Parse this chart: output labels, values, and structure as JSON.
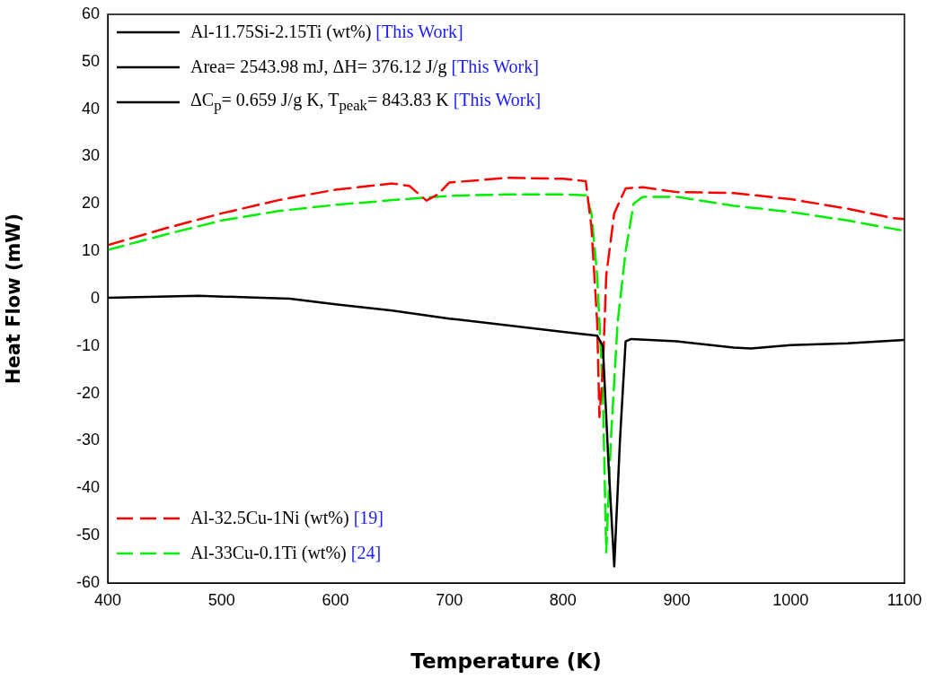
{
  "chart_data": {
    "type": "line",
    "xlabel": "Temperature (K)",
    "ylabel": "Heat Flow (mW)",
    "xlim": [
      400,
      1100
    ],
    "xticks": [
      400,
      500,
      600,
      700,
      800,
      900,
      1000,
      1100
    ],
    "ylim": [
      -60,
      60
    ],
    "yticks": [
      -60,
      -50,
      -40,
      -30,
      -20,
      -10,
      0,
      10,
      20,
      30,
      40,
      50,
      60
    ],
    "grid": false,
    "legend": "top left",
    "marker": "none",
    "annotations": [
      "Area= 2543.98 mJ, ΔH= 376.12 J/g [This Work]",
      "ΔC$_{p}$= 0.659 J/g K, T$_{peak}$= 843.83 K [This Work]"
    ],
    "series": [
      {
        "name": "Al-11.75Si-2.15Ti (wt%) [This Work]",
        "color": "#000000",
        "line_style": "solid",
        "x": [
          400,
          480,
          560,
          600,
          650,
          700,
          750,
          800,
          830,
          835,
          840,
          845,
          850,
          855,
          860,
          900,
          950,
          965,
          1000,
          1050,
          1100
        ],
        "values": [
          0.2,
          0.6,
          0,
          -1.2,
          -2.5,
          -4.2,
          -5.6,
          -7,
          -7.8,
          -10,
          -35,
          -56.5,
          -30,
          -9,
          -8.5,
          -9,
          -10.3,
          -10.5,
          -9.8,
          -9.4,
          -8.7
        ]
      },
      {
        "name": "Al-32.5Cu-1Ni (wt%) [19]",
        "color": "#ff0000",
        "line_style": "dashed",
        "x": [
          400,
          450,
          500,
          550,
          600,
          650,
          665,
          680,
          690,
          700,
          750,
          800,
          820,
          825,
          830,
          832,
          835,
          838,
          845,
          855,
          870,
          900,
          950,
          1000,
          1050,
          1090,
          1100
        ],
        "values": [
          11.3,
          14.8,
          18,
          20.8,
          23,
          24.3,
          23.8,
          20.7,
          22,
          24.5,
          25.5,
          25.3,
          24.8,
          15,
          -5,
          -25,
          -15,
          5,
          18,
          23.3,
          23.5,
          22.5,
          22.3,
          21,
          19,
          17,
          16.8
        ]
      },
      {
        "name": "Al-33Cu-0.1Ti (wt%) [24]",
        "color": "#00ee00",
        "line_style": "dashed",
        "x": [
          400,
          450,
          500,
          550,
          600,
          650,
          700,
          750,
          800,
          820,
          825,
          830,
          835,
          838,
          842,
          848,
          855,
          862,
          870,
          900,
          950,
          1000,
          1050,
          1100
        ],
        "values": [
          10.3,
          13.5,
          16.5,
          18.5,
          19.8,
          20.8,
          21.7,
          22,
          22,
          21.8,
          18,
          5,
          -20,
          -53.5,
          -30,
          -5,
          10,
          20,
          21.5,
          21.5,
          19.6,
          18.3,
          16.5,
          14.3
        ]
      }
    ]
  }
}
